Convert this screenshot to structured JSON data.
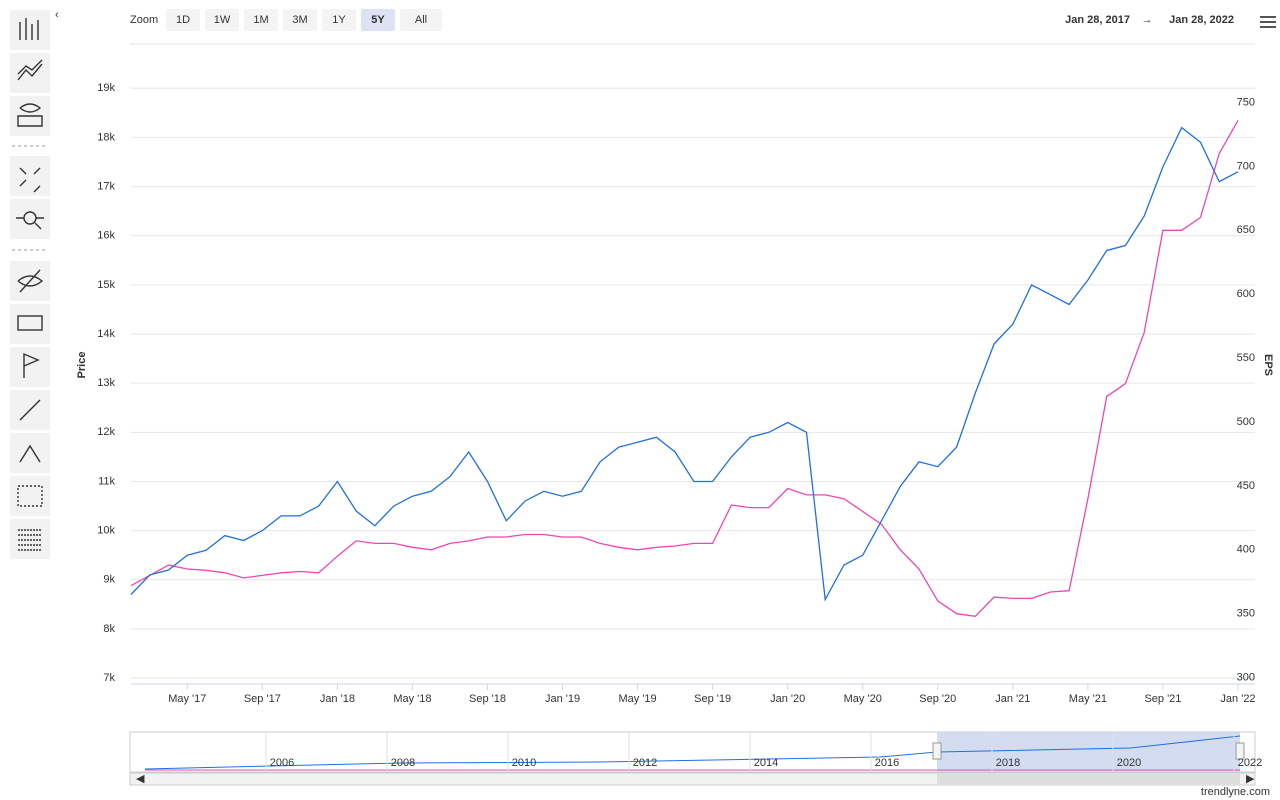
{
  "toolbar": {
    "zoom_label": "Zoom",
    "zoom_buttons": [
      "1D",
      "1W",
      "1M",
      "3M",
      "1Y",
      "5Y",
      "All"
    ],
    "active_zoom": 5,
    "range_from": "Jan 28, 2017",
    "range_arrow": "→",
    "range_to": "Jan 28, 2022"
  },
  "chart_data": {
    "type": "line",
    "y_label": "Price",
    "y2_label": "EPS",
    "x": [
      "2017-02",
      "2017-03",
      "2017-04",
      "2017-05",
      "2017-06",
      "2017-07",
      "2017-08",
      "2017-09",
      "2017-10",
      "2017-11",
      "2017-12",
      "2018-01",
      "2018-02",
      "2018-03",
      "2018-04",
      "2018-05",
      "2018-06",
      "2018-07",
      "2018-08",
      "2018-09",
      "2018-10",
      "2018-11",
      "2018-12",
      "2019-01",
      "2019-02",
      "2019-03",
      "2019-04",
      "2019-05",
      "2019-06",
      "2019-07",
      "2019-08",
      "2019-09",
      "2019-10",
      "2019-11",
      "2019-12",
      "2020-01",
      "2020-02",
      "2020-03",
      "2020-04",
      "2020-05",
      "2020-06",
      "2020-07",
      "2020-08",
      "2020-09",
      "2020-10",
      "2020-11",
      "2020-12",
      "2021-01",
      "2021-02",
      "2021-03",
      "2021-04",
      "2021-05",
      "2021-06",
      "2021-07",
      "2021-08",
      "2021-09",
      "2021-10",
      "2021-11",
      "2021-12",
      "2022-01"
    ],
    "xlim": [
      "2017-02",
      "2022-01"
    ],
    "xticks": [
      {
        "value": "2017-05",
        "label": "May '17"
      },
      {
        "value": "2017-09",
        "label": "Sep '17"
      },
      {
        "value": "2018-01",
        "label": "Jan '18"
      },
      {
        "value": "2018-05",
        "label": "May '18"
      },
      {
        "value": "2018-09",
        "label": "Sep '18"
      },
      {
        "value": "2019-01",
        "label": "Jan '19"
      },
      {
        "value": "2019-05",
        "label": "May '19"
      },
      {
        "value": "2019-09",
        "label": "Sep '19"
      },
      {
        "value": "2020-01",
        "label": "Jan '20"
      },
      {
        "value": "2020-05",
        "label": "May '20"
      },
      {
        "value": "2020-09",
        "label": "Sep '20"
      },
      {
        "value": "2021-01",
        "label": "Jan '21"
      },
      {
        "value": "2021-05",
        "label": "May '21"
      },
      {
        "value": "2021-09",
        "label": "Sep '21"
      },
      {
        "value": "2022-01",
        "label": "Jan '22"
      }
    ],
    "ylim": [
      6880,
      19880
    ],
    "yticks": [
      {
        "value": 7000,
        "label": "7k"
      },
      {
        "value": 8000,
        "label": "8k"
      },
      {
        "value": 9000,
        "label": "9k"
      },
      {
        "value": 10000,
        "label": "10k"
      },
      {
        "value": 11000,
        "label": "11k"
      },
      {
        "value": 12000,
        "label": "12k"
      },
      {
        "value": 13000,
        "label": "13k"
      },
      {
        "value": 14000,
        "label": "14k"
      },
      {
        "value": 15000,
        "label": "15k"
      },
      {
        "value": 16000,
        "label": "16k"
      },
      {
        "value": 17000,
        "label": "17k"
      },
      {
        "value": 18000,
        "label": "18k"
      },
      {
        "value": 19000,
        "label": "19k"
      }
    ],
    "y2lim": [
      295,
      795
    ],
    "y2ticks": [
      300,
      350,
      400,
      450,
      500,
      550,
      600,
      650,
      700,
      750
    ],
    "grid": true,
    "series": [
      {
        "name": "Price",
        "color": "#1f6fe5",
        "axis": "y",
        "values": [
          8700,
          9100,
          9200,
          9500,
          9600,
          9900,
          9800,
          10000,
          10300,
          10300,
          10500,
          11000,
          10400,
          10100,
          10500,
          10700,
          10800,
          11100,
          11600,
          11000,
          10200,
          10600,
          10800,
          10700,
          10800,
          11400,
          11700,
          11800,
          11900,
          11600,
          11000,
          11000,
          11500,
          11900,
          12000,
          12200,
          12000,
          8600,
          9300,
          9500,
          10200,
          10900,
          11400,
          11300,
          11700,
          12800,
          13800,
          14200,
          15000,
          14800,
          14600,
          15100,
          15700,
          15800,
          16400,
          17400,
          18200,
          17900,
          17100,
          17300
        ]
      },
      {
        "name": "EPS",
        "color": "#f046b0",
        "axis": "y2",
        "values": [
          372,
          380,
          388,
          385,
          384,
          382,
          378,
          380,
          382,
          383,
          382,
          395,
          407,
          405,
          405,
          402,
          400,
          405,
          407,
          410,
          410,
          412,
          412,
          410,
          410,
          405,
          402,
          400,
          402,
          403,
          405,
          405,
          435,
          433,
          433,
          448,
          443,
          443,
          440,
          430,
          420,
          400,
          385,
          360,
          350,
          348,
          363,
          362,
          362,
          367,
          368,
          440,
          520,
          530,
          570,
          650,
          650,
          660,
          710,
          736
        ]
      }
    ]
  },
  "navigator": {
    "years": [
      "2006",
      "2008",
      "2010",
      "2012",
      "2014",
      "2016",
      "2018",
      "2020",
      "2022"
    ]
  },
  "footer": "trendlyne.com"
}
